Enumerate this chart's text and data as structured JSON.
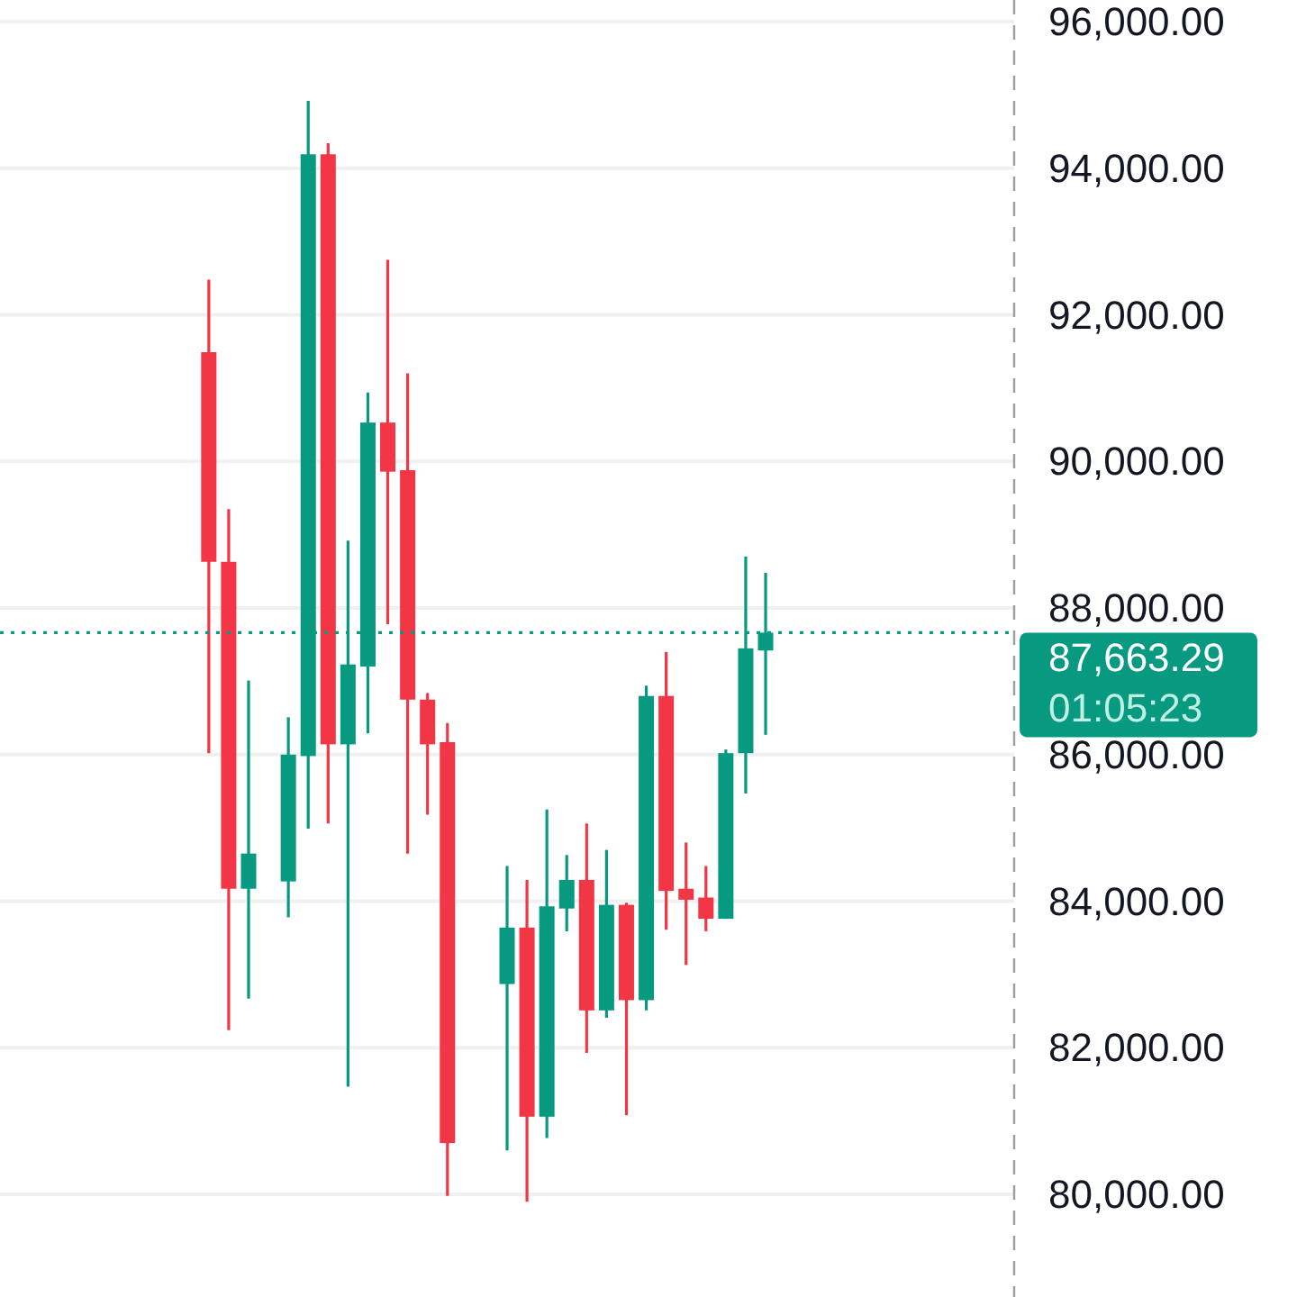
{
  "chart_data": {
    "type": "candlestick",
    "categories": [
      null,
      null,
      null,
      null,
      null,
      null,
      null,
      null,
      null,
      null,
      null,
      null,
      null,
      null,
      null,
      null,
      null,
      null,
      null,
      null,
      null,
      null,
      null,
      null,
      null,
      null,
      null,
      null,
      null,
      null,
      null,
      null,
      null,
      null,
      null,
      null,
      null,
      null,
      null,
      null,
      null,
      null,
      null,
      null,
      null,
      null,
      null,
      null,
      null,
      null,
      null
    ],
    "ohlc": [
      null,
      null,
      null,
      null,
      null,
      null,
      null,
      null,
      null,
      null,
      [
        91490,
        92480,
        86020,
        88630
      ],
      [
        88630,
        89350,
        82240,
        84170
      ],
      [
        84170,
        87010,
        82670,
        84650
      ],
      null,
      [
        84270,
        86510,
        83780,
        86000
      ],
      [
        85980,
        94920,
        84990,
        94190
      ],
      [
        94190,
        94340,
        85060,
        86140
      ],
      [
        86140,
        88920,
        81470,
        87230
      ],
      [
        87200,
        90940,
        86290,
        90530
      ],
      [
        90530,
        92750,
        87780,
        89860
      ],
      [
        89880,
        91200,
        84650,
        86750
      ],
      [
        86750,
        86840,
        85180,
        86140
      ],
      [
        86170,
        86430,
        79980,
        80700
      ],
      null,
      null,
      [
        82870,
        84480,
        80600,
        83640
      ],
      [
        83640,
        84290,
        79900,
        81060
      ],
      [
        81060,
        85250,
        80770,
        83930
      ],
      [
        83900,
        84630,
        83590,
        84290
      ],
      [
        84290,
        85060,
        81930,
        82510
      ],
      [
        82510,
        84700,
        82410,
        83950
      ],
      [
        83950,
        83980,
        81080,
        82650
      ],
      [
        82650,
        86940,
        82510,
        86800
      ],
      [
        86800,
        87400,
        83610,
        84140
      ],
      [
        84170,
        84800,
        83130,
        84020
      ],
      [
        84050,
        84480,
        83590,
        83760
      ],
      [
        83760,
        86070,
        83760,
        86020
      ],
      [
        86020,
        88700,
        85470,
        87450
      ],
      [
        87420,
        88480,
        86270,
        87663.29
      ],
      null,
      null,
      null,
      null,
      null,
      null,
      null,
      null,
      null,
      null,
      null,
      null
    ],
    "colors": [
      null,
      null,
      null,
      null,
      null,
      null,
      null,
      null,
      null,
      null,
      "#f23645",
      "#f23645",
      "#089981",
      null,
      "#089981",
      "#089981",
      "#f23645",
      "#089981",
      "#089981",
      "#f23645",
      "#f23645",
      "#f23645",
      "#f23645",
      null,
      null,
      "#089981",
      "#f23645",
      "#089981",
      "#089981",
      "#f23645",
      "#089981",
      "#f23645",
      "#089981",
      "#f23645",
      "#f23645",
      "#f23645",
      "#089981",
      "#089981",
      "#089981",
      null,
      null,
      null,
      null,
      null,
      null,
      null,
      null,
      null,
      null,
      null,
      null
    ],
    "ylim": [
      78600,
      96000
    ],
    "yticks": [
      {
        "value": 80000,
        "label": "80,000.00"
      },
      {
        "value": 82000,
        "label": "82,000.00"
      },
      {
        "value": 84000,
        "label": "84,000.00"
      },
      {
        "value": 86000,
        "label": "86,000.00"
      },
      {
        "value": 88000,
        "label": "88,000.00"
      },
      {
        "value": 90000,
        "label": "90,000.00"
      },
      {
        "value": 92000,
        "label": "92,000.00"
      },
      {
        "value": 94000,
        "label": "94,000.00"
      },
      {
        "value": 96000,
        "label": "96,000.00"
      }
    ],
    "grid": true,
    "tick_labels": "y",
    "ref_lines": [
      {
        "axis": "y",
        "value": 87663.29,
        "label": "87,663.29",
        "color": "#089981",
        "line_style": "dotted"
      }
    ],
    "annotations": [
      "01:05:23"
    ]
  }
}
